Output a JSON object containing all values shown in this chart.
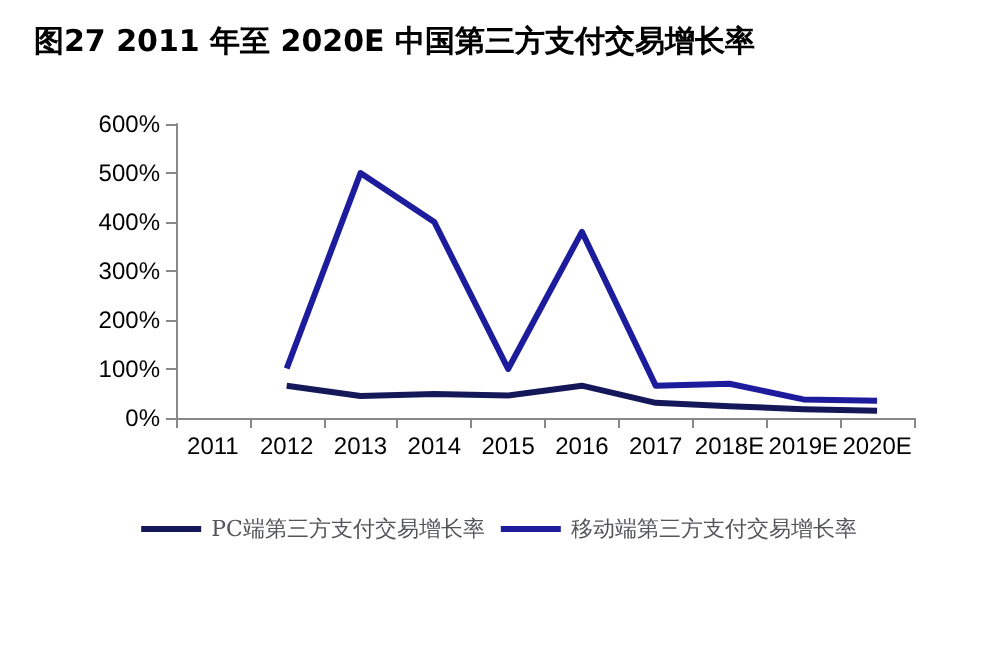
{
  "chart_data": {
    "type": "line",
    "title": "图27 2011 年至 2020E 中国第三方支付交易增长率",
    "categories": [
      "2011",
      "2012",
      "2013",
      "2014",
      "2015",
      "2016",
      "2017",
      "2018E",
      "2019E",
      "2020E"
    ],
    "series": [
      {
        "name": "PC端第三方支付交易增长率",
        "color": "#141858",
        "values": [
          null,
          66,
          45,
          49,
          46,
          66,
          31,
          24,
          18,
          15
        ]
      },
      {
        "name": "移动端第三方支付交易增长率",
        "color": "#1c1c9c",
        "values": [
          null,
          101,
          500,
          400,
          100,
          380,
          66,
          70,
          38,
          35
        ]
      }
    ],
    "ylim": [
      0,
      600
    ],
    "yticks": [
      {
        "value": 0,
        "label": "0%"
      },
      {
        "value": 100,
        "label": "100%"
      },
      {
        "value": 200,
        "label": "200%"
      },
      {
        "value": 300,
        "label": "300%"
      },
      {
        "value": 400,
        "label": "400%"
      },
      {
        "value": 500,
        "label": "500%"
      },
      {
        "value": 600,
        "label": "600%"
      }
    ],
    "grid": false,
    "legend": "bottom",
    "marker": "none",
    "line_style": "solid"
  }
}
